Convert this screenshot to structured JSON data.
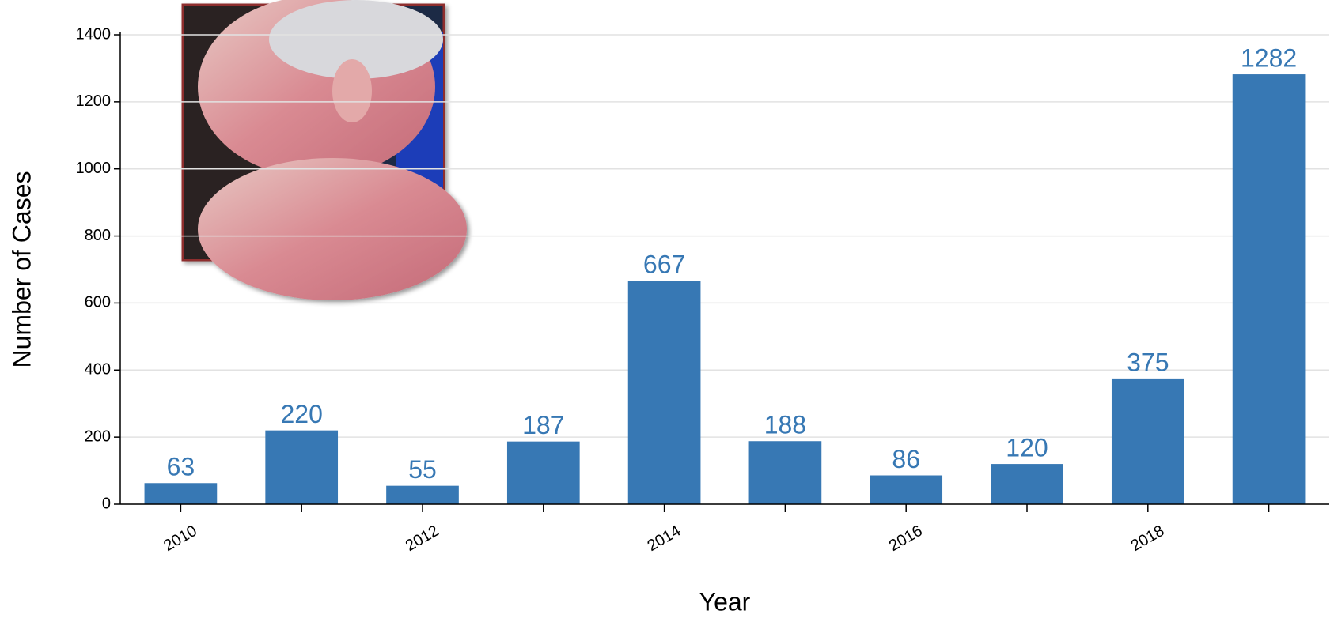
{
  "chart_data": {
    "type": "bar",
    "x_label": "Year",
    "y_label": "Number of Cases",
    "categories": [
      "2010",
      null,
      "2012",
      null,
      "2014",
      null,
      "2016",
      null,
      "2018",
      null
    ],
    "values": [
      63,
      220,
      55,
      187,
      667,
      188,
      86,
      120,
      375,
      1282
    ],
    "color": "#3778b4",
    "ylim": [
      0,
      1400
    ],
    "yticks": [
      0,
      200,
      400,
      600,
      800,
      1000,
      1200,
      1400
    ],
    "grid": true
  }
}
